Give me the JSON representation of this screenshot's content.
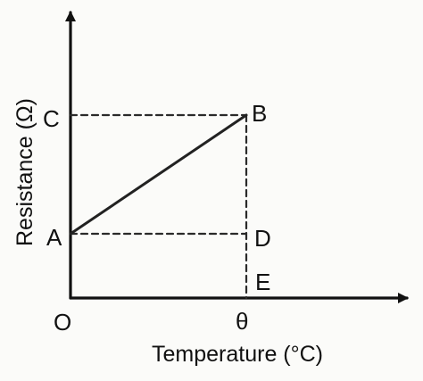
{
  "labels": {
    "C": "C",
    "B": "B",
    "A": "A",
    "D": "D",
    "E": "E",
    "O": "O",
    "theta": "θ"
  },
  "axes": {
    "x_title": "Temperature (°C)",
    "y_title": "Resistance (Ω)"
  },
  "colors": {
    "line": "#222222",
    "axis": "#111111",
    "background": "#fbfbf9"
  }
}
